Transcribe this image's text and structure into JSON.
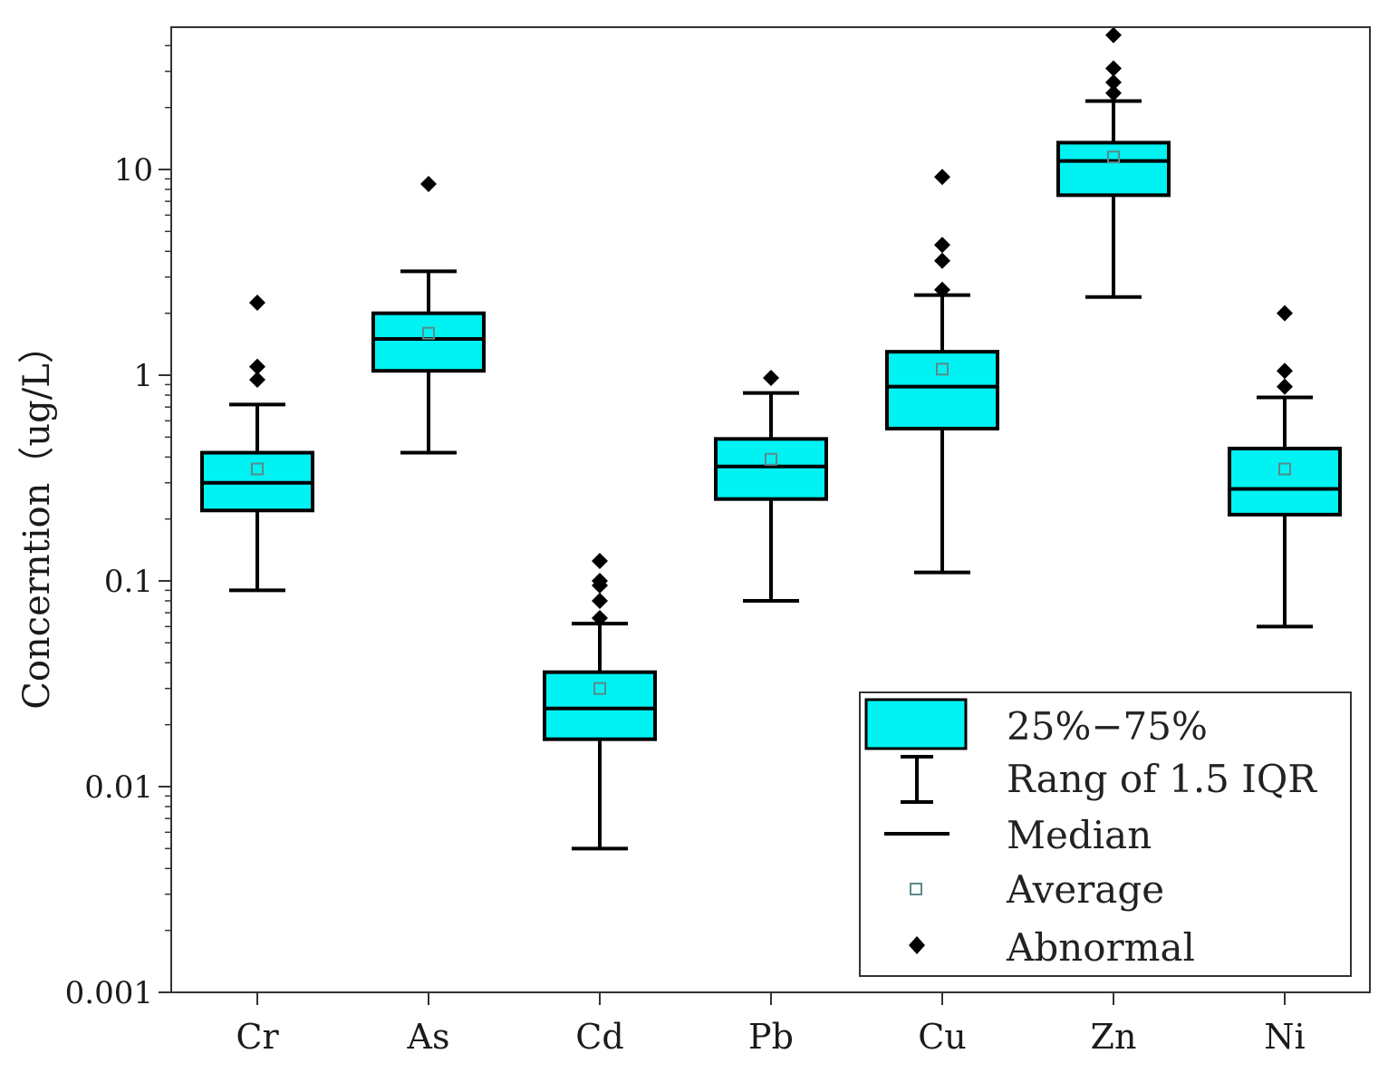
{
  "chart_data": {
    "type": "box",
    "title": "",
    "xlabel": "",
    "ylabel": "Concerntion（ug/L）",
    "yscale": "log",
    "ylim": [
      0.001,
      50
    ],
    "yticks": [
      {
        "value": 0.001,
        "label": "0.001"
      },
      {
        "value": 0.01,
        "label": "0.01"
      },
      {
        "value": 0.1,
        "label": "0.1"
      },
      {
        "value": 1,
        "label": "1"
      },
      {
        "value": 10,
        "label": "10"
      }
    ],
    "categories": [
      "Cr",
      "As",
      "Cd",
      "Pb",
      "Cu",
      "Zn",
      "Ni"
    ],
    "boxes": [
      {
        "name": "Cr",
        "whisker_low": 0.09,
        "q1": 0.22,
        "median": 0.3,
        "q3": 0.42,
        "whisker_high": 0.72,
        "mean": 0.35,
        "outliers": [
          0.95,
          1.1,
          2.25
        ]
      },
      {
        "name": "As",
        "whisker_low": 0.42,
        "q1": 1.05,
        "median": 1.5,
        "q3": 2.0,
        "whisker_high": 3.2,
        "mean": 1.6,
        "outliers": [
          8.5
        ]
      },
      {
        "name": "Cd",
        "whisker_low": 0.005,
        "q1": 0.017,
        "median": 0.024,
        "q3": 0.036,
        "whisker_high": 0.062,
        "mean": 0.03,
        "outliers": [
          0.066,
          0.08,
          0.095,
          0.1,
          0.125
        ]
      },
      {
        "name": "Pb",
        "whisker_low": 0.08,
        "q1": 0.25,
        "median": 0.36,
        "q3": 0.49,
        "whisker_high": 0.82,
        "mean": 0.39,
        "outliers": [
          0.97
        ]
      },
      {
        "name": "Cu",
        "whisker_low": 0.11,
        "q1": 0.55,
        "median": 0.88,
        "q3": 1.3,
        "whisker_high": 2.45,
        "mean": 1.07,
        "outliers": [
          2.6,
          3.6,
          4.3,
          9.2
        ]
      },
      {
        "name": "Zn",
        "whisker_low": 2.4,
        "q1": 7.5,
        "median": 11.0,
        "q3": 13.5,
        "whisker_high": 21.5,
        "mean": 11.5,
        "outliers": [
          23.5,
          26.5,
          31.0,
          45.0
        ]
      },
      {
        "name": "Ni",
        "whisker_low": 0.06,
        "q1": 0.21,
        "median": 0.28,
        "q3": 0.44,
        "whisker_high": 0.78,
        "mean": 0.35,
        "outliers": [
          0.88,
          1.05,
          2.0
        ]
      }
    ],
    "legend": {
      "position": "bottom-right",
      "items": [
        {
          "key": "box",
          "label": "25%−75%"
        },
        {
          "key": "whisker",
          "label": "Rang of 1.5 IQR"
        },
        {
          "key": "median",
          "label": "Median"
        },
        {
          "key": "mean",
          "label": "Average"
        },
        {
          "key": "outlier",
          "label": "Abnormal"
        }
      ]
    },
    "colors": {
      "box_fill": "#00f2f2",
      "line": "#000000",
      "mean_marker": "#5a8a8a"
    }
  }
}
